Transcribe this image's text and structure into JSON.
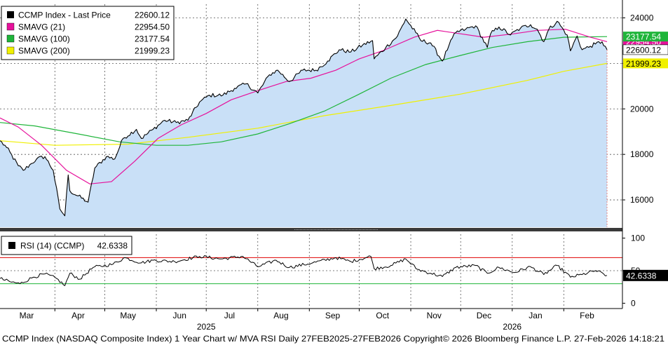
{
  "chart_data": [
    {
      "type": "line",
      "panel": "price",
      "legend": [
        {
          "label": "CCMP Index - Last Price",
          "value": "22600.12",
          "color": "#000000"
        },
        {
          "label": "SMAVG (21)",
          "value": "22954.50",
          "color": "#e6119b"
        },
        {
          "label": "SMAVG (100)",
          "value": "23177.54",
          "color": "#1fb53a"
        },
        {
          "label": "SMAVG (200)",
          "value": "21999.23",
          "color": "#f0f000"
        }
      ],
      "legend_position": "top-left",
      "ylim": [
        14800,
        24600
      ],
      "yticks": [
        16000,
        18000,
        20000,
        22000,
        24000
      ],
      "grid": true,
      "area_color": "#c9e0f7",
      "price_anchors": [
        [
          "2025-02-27",
          18600
        ],
        [
          "2025-03-03",
          18300
        ],
        [
          "2025-03-10",
          17500
        ],
        [
          "2025-03-13",
          17300
        ],
        [
          "2025-03-18",
          17600
        ],
        [
          "2025-03-21",
          17800
        ],
        [
          "2025-03-26",
          17900
        ],
        [
          "2025-03-31",
          17300
        ],
        [
          "2025-04-04",
          15600
        ],
        [
          "2025-04-07",
          15300
        ],
        [
          "2025-04-09",
          17100
        ],
        [
          "2025-04-10",
          16400
        ],
        [
          "2025-04-21",
          15900
        ],
        [
          "2025-04-25",
          17400
        ],
        [
          "2025-05-02",
          17900
        ],
        [
          "2025-05-07",
          17800
        ],
        [
          "2025-05-12",
          18700
        ],
        [
          "2025-05-20",
          19100
        ],
        [
          "2025-05-23",
          18700
        ],
        [
          "2025-05-30",
          19100
        ],
        [
          "2025-06-06",
          19500
        ],
        [
          "2025-06-13",
          19400
        ],
        [
          "2025-06-20",
          19500
        ],
        [
          "2025-06-27",
          20300
        ],
        [
          "2025-07-03",
          20600
        ],
        [
          "2025-07-11",
          20600
        ],
        [
          "2025-07-18",
          20900
        ],
        [
          "2025-07-25",
          21100
        ],
        [
          "2025-08-01",
          20700
        ],
        [
          "2025-08-08",
          21500
        ],
        [
          "2025-08-13",
          21700
        ],
        [
          "2025-08-20",
          21200
        ],
        [
          "2025-08-28",
          21700
        ],
        [
          "2025-09-05",
          21700
        ],
        [
          "2025-09-12",
          22100
        ],
        [
          "2025-09-19",
          22600
        ],
        [
          "2025-09-26",
          22500
        ],
        [
          "2025-10-03",
          22800
        ],
        [
          "2025-10-09",
          23000
        ],
        [
          "2025-10-10",
          22200
        ],
        [
          "2025-10-17",
          22700
        ],
        [
          "2025-10-24",
          23200
        ],
        [
          "2025-10-29",
          23950
        ],
        [
          "2025-11-04",
          23350
        ],
        [
          "2025-11-07",
          23000
        ],
        [
          "2025-11-13",
          22900
        ],
        [
          "2025-11-20",
          22100
        ],
        [
          "2025-11-24",
          22800
        ],
        [
          "2025-11-28",
          23350
        ],
        [
          "2025-12-04",
          23500
        ],
        [
          "2025-12-10",
          23650
        ],
        [
          "2025-12-17",
          22700
        ],
        [
          "2025-12-19",
          23300
        ],
        [
          "2025-12-24",
          23600
        ],
        [
          "2025-12-31",
          23250
        ],
        [
          "2026-01-06",
          23550
        ],
        [
          "2026-01-12",
          23700
        ],
        [
          "2026-01-16",
          23500
        ],
        [
          "2026-01-20",
          22950
        ],
        [
          "2026-01-23",
          23500
        ],
        [
          "2026-01-28",
          23850
        ],
        [
          "2026-02-03",
          23250
        ],
        [
          "2026-02-05",
          22550
        ],
        [
          "2026-02-09",
          23200
        ],
        [
          "2026-02-12",
          22600
        ],
        [
          "2026-02-17",
          22750
        ],
        [
          "2026-02-20",
          22850
        ],
        [
          "2026-02-24",
          22950
        ],
        [
          "2026-02-27",
          22600.12
        ]
      ],
      "sma21": [
        [
          "2025-02-27",
          19600
        ],
        [
          "2025-03-10",
          19200
        ],
        [
          "2025-03-24",
          18400
        ],
        [
          "2025-04-08",
          17300
        ],
        [
          "2025-04-22",
          16700
        ],
        [
          "2025-05-05",
          16800
        ],
        [
          "2025-05-19",
          17700
        ],
        [
          "2025-06-02",
          18700
        ],
        [
          "2025-06-16",
          19300
        ],
        [
          "2025-07-01",
          19800
        ],
        [
          "2025-07-16",
          20400
        ],
        [
          "2025-08-01",
          20800
        ],
        [
          "2025-08-18",
          21200
        ],
        [
          "2025-09-02",
          21350
        ],
        [
          "2025-09-17",
          21700
        ],
        [
          "2025-10-01",
          22200
        ],
        [
          "2025-10-15",
          22550
        ],
        [
          "2025-11-03",
          23150
        ],
        [
          "2025-11-17",
          23450
        ],
        [
          "2025-12-01",
          23300
        ],
        [
          "2025-12-15",
          23150
        ],
        [
          "2026-01-02",
          23300
        ],
        [
          "2026-01-16",
          23450
        ],
        [
          "2026-02-02",
          23500
        ],
        [
          "2026-02-17",
          23150
        ],
        [
          "2026-02-27",
          22954.5
        ]
      ],
      "sma100": [
        [
          "2025-02-27",
          19400
        ],
        [
          "2025-03-20",
          19250
        ],
        [
          "2025-04-15",
          18900
        ],
        [
          "2025-05-10",
          18550
        ],
        [
          "2025-06-01",
          18400
        ],
        [
          "2025-06-20",
          18400
        ],
        [
          "2025-07-10",
          18550
        ],
        [
          "2025-08-01",
          18900
        ],
        [
          "2025-08-20",
          19350
        ],
        [
          "2025-09-10",
          19900
        ],
        [
          "2025-10-01",
          20650
        ],
        [
          "2025-10-20",
          21350
        ],
        [
          "2025-11-10",
          21950
        ],
        [
          "2025-12-01",
          22350
        ],
        [
          "2025-12-20",
          22700
        ],
        [
          "2026-01-10",
          22950
        ],
        [
          "2026-02-01",
          23150
        ],
        [
          "2026-02-27",
          23177.54
        ]
      ],
      "sma200": [
        [
          "2025-02-27",
          18600
        ],
        [
          "2025-04-01",
          18400
        ],
        [
          "2025-05-15",
          18450
        ],
        [
          "2025-06-20",
          18750
        ],
        [
          "2025-08-01",
          19150
        ],
        [
          "2025-09-10",
          19700
        ],
        [
          "2025-10-20",
          20150
        ],
        [
          "2025-12-01",
          20650
        ],
        [
          "2026-01-10",
          21250
        ],
        [
          "2026-02-01",
          21650
        ],
        [
          "2026-02-27",
          21999.23
        ]
      ],
      "price_labels": [
        {
          "text": "22954.50",
          "value": 22954.5,
          "bg": "#e6119b",
          "fg": "#ffffff"
        },
        {
          "text": "23177.54",
          "value": 23177.54,
          "bg": "#1fb53a",
          "fg": "#ffffff"
        },
        {
          "text": "22600.12",
          "value": 22600.12,
          "bg": "#ffffff",
          "fg": "#000000"
        },
        {
          "text": "21999.23",
          "value": 21999.23,
          "bg": "#f0f000",
          "fg": "#000000"
        }
      ]
    },
    {
      "type": "line",
      "panel": "rsi",
      "legend": [
        {
          "label": "RSI (14) (CCMP)",
          "value": "42.6338",
          "color": "#000000"
        }
      ],
      "legend_position": "top-left",
      "ylim": [
        -6,
        106
      ],
      "yticks": [
        0,
        50,
        100
      ],
      "overbought": 70,
      "oversold": 30,
      "overbought_color": "#e00000",
      "oversold_color": "#1fb53a",
      "grid": true,
      "rsi_anchors": [
        [
          "2025-02-27",
          38
        ],
        [
          "2025-03-05",
          33
        ],
        [
          "2025-03-11",
          30
        ],
        [
          "2025-03-19",
          40
        ],
        [
          "2025-03-26",
          45
        ],
        [
          "2025-04-02",
          38
        ],
        [
          "2025-04-07",
          27
        ],
        [
          "2025-04-10",
          46
        ],
        [
          "2025-04-16",
          37
        ],
        [
          "2025-04-24",
          55
        ],
        [
          "2025-05-06",
          60
        ],
        [
          "2025-05-13",
          70
        ],
        [
          "2025-05-23",
          62
        ],
        [
          "2025-05-30",
          66
        ],
        [
          "2025-06-12",
          64
        ],
        [
          "2025-06-27",
          72
        ],
        [
          "2025-07-10",
          68
        ],
        [
          "2025-07-23",
          72
        ],
        [
          "2025-08-01",
          56
        ],
        [
          "2025-08-12",
          66
        ],
        [
          "2025-08-20",
          55
        ],
        [
          "2025-09-03",
          62
        ],
        [
          "2025-09-17",
          70
        ],
        [
          "2025-09-26",
          64
        ],
        [
          "2025-10-08",
          72
        ],
        [
          "2025-10-10",
          53
        ],
        [
          "2025-10-20",
          58
        ],
        [
          "2025-10-29",
          68
        ],
        [
          "2025-11-05",
          52
        ],
        [
          "2025-11-13",
          46
        ],
        [
          "2025-11-20",
          41
        ],
        [
          "2025-11-28",
          55
        ],
        [
          "2025-12-10",
          58
        ],
        [
          "2025-12-17",
          46
        ],
        [
          "2025-12-24",
          55
        ],
        [
          "2026-01-02",
          47
        ],
        [
          "2026-01-12",
          56
        ],
        [
          "2026-01-20",
          44
        ],
        [
          "2026-01-28",
          58
        ],
        [
          "2026-02-05",
          40
        ],
        [
          "2026-02-12",
          44
        ],
        [
          "2026-02-20",
          50
        ],
        [
          "2026-02-27",
          42.6338
        ]
      ],
      "rsi_label": {
        "text": "42.6338",
        "value": 42.6338,
        "bg": "#000000",
        "fg": "#ffffff"
      }
    }
  ],
  "x_axis": {
    "start": "2025-02-27",
    "end": "2026-02-27",
    "month_labels": [
      {
        "label": "Mar",
        "date": "2025-03-15"
      },
      {
        "label": "Apr",
        "date": "2025-04-15"
      },
      {
        "label": "May",
        "date": "2025-05-15"
      },
      {
        "label": "Jun",
        "date": "2025-06-15"
      },
      {
        "label": "Jul",
        "date": "2025-07-15"
      },
      {
        "label": "Aug",
        "date": "2025-08-15"
      },
      {
        "label": "Sep",
        "date": "2025-09-15"
      },
      {
        "label": "Oct",
        "date": "2025-10-15"
      },
      {
        "label": "Nov",
        "date": "2025-11-15"
      },
      {
        "label": "Dec",
        "date": "2025-12-15"
      },
      {
        "label": "Jan",
        "date": "2026-01-15"
      },
      {
        "label": "Feb",
        "date": "2026-02-15"
      }
    ],
    "year_labels": [
      {
        "label": "2025",
        "date": "2025-07-01"
      },
      {
        "label": "2026",
        "date": "2026-01-01"
      }
    ],
    "month_dividers": [
      "2025-04-01",
      "2025-05-01",
      "2025-06-01",
      "2025-07-01",
      "2025-08-01",
      "2025-09-01",
      "2025-10-01",
      "2025-11-01",
      "2025-12-01",
      "2026-01-01",
      "2026-02-01"
    ]
  },
  "footer": {
    "text": "CCMP Index (NASDAQ Composite Index) 1 Year Chart w/ MVA RSI Daily 27FEB2025-27FEB2026  Copyright© 2026 Bloomberg Finance L.P.  27-Feb-2026 14:18:21"
  }
}
